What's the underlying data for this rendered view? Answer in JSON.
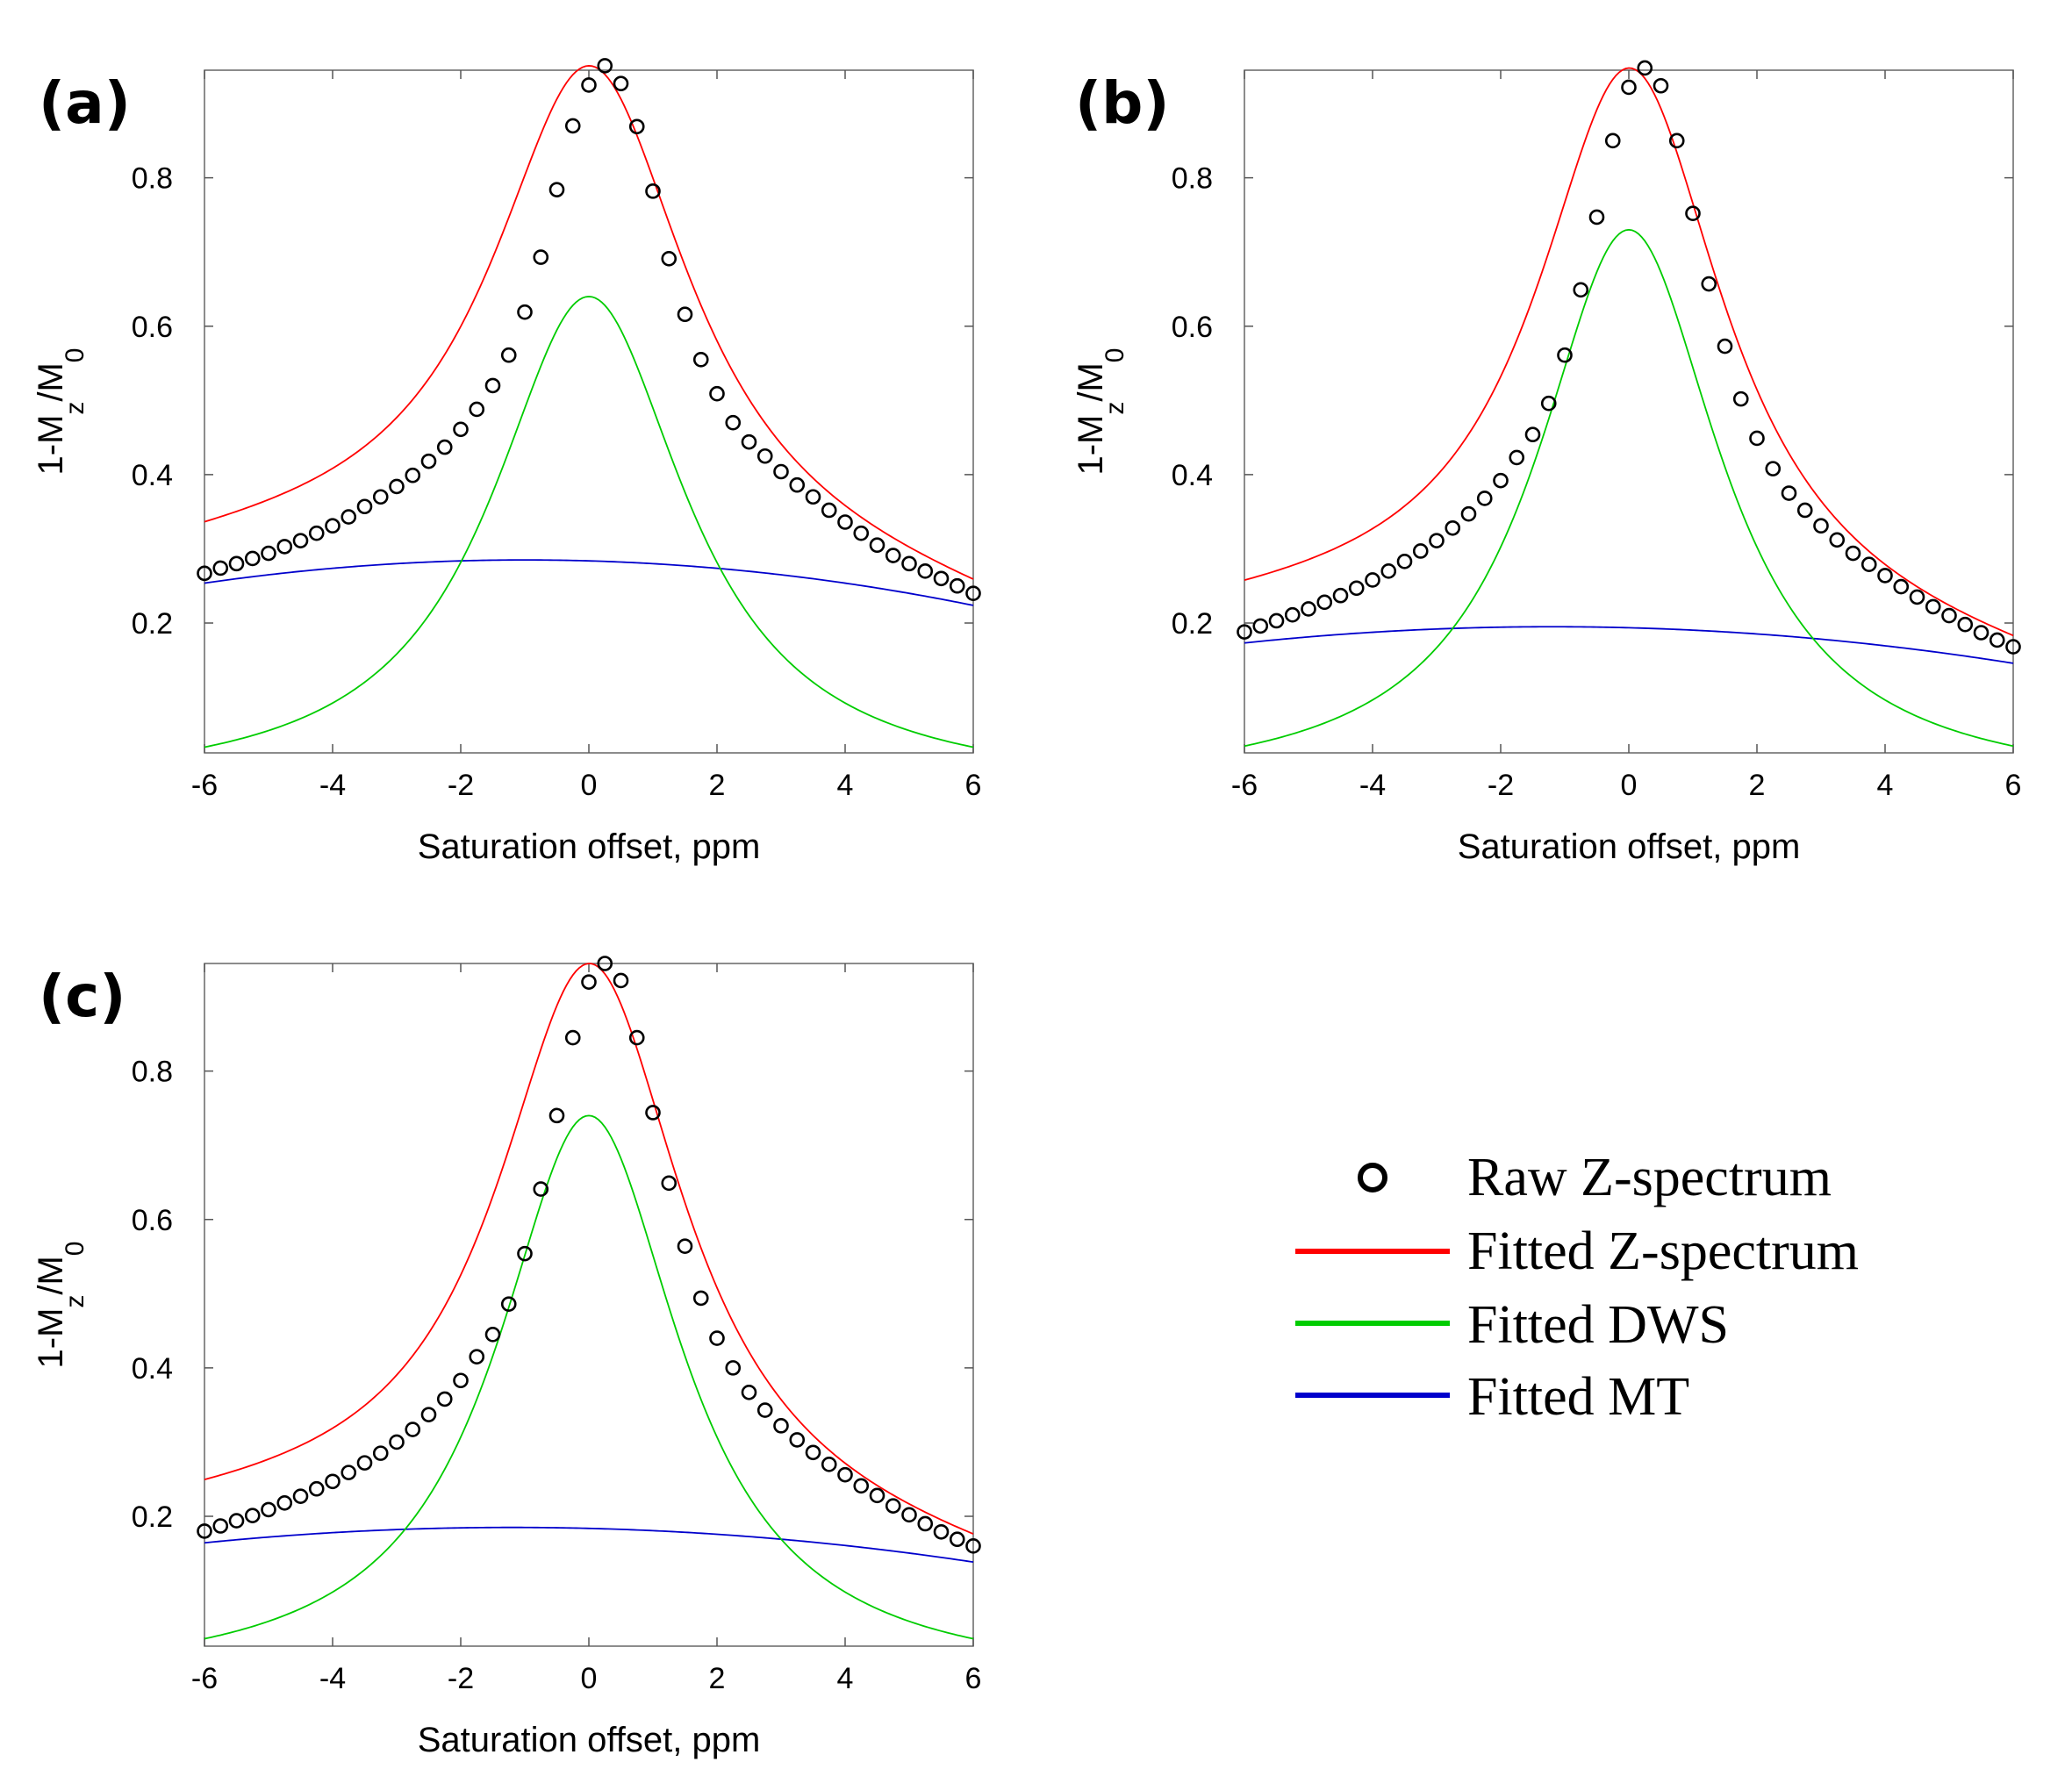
{
  "figure": {
    "colors": {
      "raw": "#000000",
      "fitted_z": "#ff0000",
      "dws": "#00cc00",
      "mt": "#0000cc"
    },
    "legend": {
      "items": [
        {
          "label": "Raw Z-spectrum",
          "marker": "circle",
          "color": "#000000"
        },
        {
          "label": "Fitted Z-spectrum",
          "marker": "line",
          "color": "#ff0000"
        },
        {
          "label": "Fitted DWS",
          "marker": "line",
          "color": "#00cc00"
        },
        {
          "label": "Fitted MT",
          "marker": "line",
          "color": "#0000cc"
        }
      ]
    }
  },
  "chart_data": [
    {
      "panel": "(a)",
      "type": "line",
      "xlabel": "Saturation offset, ppm",
      "ylabel": {
        "prefix": "1-M",
        "sub1": "z",
        "mid": "/M",
        "sub2": "0"
      },
      "xlim": [
        -6,
        6
      ],
      "ylim": [
        0.025,
        0.945
      ],
      "xticks": [
        "-6",
        "-4",
        "-2",
        "0",
        "2",
        "4",
        "6"
      ],
      "yticks": [
        "0.2",
        "0.4",
        "0.6",
        "0.8"
      ],
      "params": {
        "dws_amp": 0.64,
        "dws_w": 1.85,
        "mt_peak": 0.285,
        "mt_c": -1.0,
        "mt_k": 0.00125,
        "z_c": 0.02,
        "z_w": 1.87,
        "z_asym": 0.004
      },
      "raw_x": [
        -6,
        -5.75,
        -5.5,
        -5.25,
        -5,
        -4.75,
        -4.5,
        -4.25,
        -4,
        -3.75,
        -3.5,
        -3.25,
        -3,
        -2.75,
        -2.5,
        -2.25,
        -2,
        -1.75,
        -1.5,
        -1.25,
        -1,
        -0.75,
        -0.5,
        -0.25,
        0,
        0.25,
        0.5,
        0.75,
        1,
        1.25,
        1.5,
        1.75,
        2,
        2.25,
        2.5,
        2.75,
        3,
        3.25,
        3.5,
        3.75,
        4,
        4.25,
        4.5,
        4.75,
        5,
        5.25,
        5.5,
        5.75,
        6
      ],
      "raw_y": [
        0.267,
        0.274,
        0.28,
        0.287,
        0.294,
        0.303,
        0.311,
        0.321,
        0.331,
        0.343,
        0.357,
        0.37,
        0.384,
        0.399,
        0.418,
        0.437,
        0.461,
        0.488,
        0.52,
        0.561,
        0.619,
        0.693,
        0.784,
        0.87,
        0.925,
        0.951,
        0.927,
        0.869,
        0.782,
        0.691,
        0.616,
        0.555,
        0.509,
        0.47,
        0.444,
        0.425,
        0.404,
        0.386,
        0.37,
        0.352,
        0.336,
        0.321,
        0.305,
        0.291,
        0.28,
        0.27,
        0.26,
        0.25,
        0.24
      ]
    },
    {
      "panel": "(b)",
      "type": "line",
      "xlabel": "Saturation offset, ppm",
      "ylabel": {
        "prefix": "1-M",
        "sub1": "z",
        "mid": "/M",
        "sub2": "0"
      },
      "xlim": [
        -6,
        6
      ],
      "ylim": [
        0.025,
        0.945
      ],
      "xticks": [
        "-6",
        "-4",
        "-2",
        "0",
        "2",
        "4",
        "6"
      ],
      "yticks": [
        "0.2",
        "0.4",
        "0.6",
        "0.8"
      ],
      "params": {
        "dws_amp": 0.73,
        "dws_w": 1.75,
        "mt_peak": 0.195,
        "mt_c": -1.2,
        "mt_k": 0.00095,
        "z_c": 0.02,
        "z_w": 1.78,
        "z_asym": 0.004
      },
      "raw_x": [
        -6,
        -5.75,
        -5.5,
        -5.25,
        -5,
        -4.75,
        -4.5,
        -4.25,
        -4,
        -3.75,
        -3.5,
        -3.25,
        -3,
        -2.75,
        -2.5,
        -2.25,
        -2,
        -1.75,
        -1.5,
        -1.25,
        -1,
        -0.75,
        -0.5,
        -0.25,
        0,
        0.25,
        0.5,
        0.75,
        1,
        1.25,
        1.5,
        1.75,
        2,
        2.25,
        2.5,
        2.75,
        3,
        3.25,
        3.5,
        3.75,
        4,
        4.25,
        4.5,
        4.75,
        5,
        5.25,
        5.5,
        5.75,
        6
      ],
      "raw_y": [
        0.188,
        0.196,
        0.203,
        0.211,
        0.219,
        0.228,
        0.237,
        0.247,
        0.258,
        0.27,
        0.283,
        0.297,
        0.311,
        0.328,
        0.347,
        0.368,
        0.392,
        0.423,
        0.454,
        0.496,
        0.561,
        0.649,
        0.747,
        0.85,
        0.922,
        0.948,
        0.924,
        0.85,
        0.752,
        0.657,
        0.573,
        0.502,
        0.449,
        0.408,
        0.375,
        0.352,
        0.331,
        0.312,
        0.294,
        0.279,
        0.264,
        0.249,
        0.235,
        0.222,
        0.21,
        0.198,
        0.187,
        0.177,
        0.168
      ]
    },
    {
      "panel": "(c)",
      "type": "line",
      "xlabel": "Saturation offset, ppm",
      "ylabel": {
        "prefix": "1-M",
        "sub1": "z",
        "mid": "/M",
        "sub2": "0"
      },
      "xlim": [
        -6,
        6
      ],
      "ylim": [
        0.025,
        0.945
      ],
      "xticks": [
        "-6",
        "-4",
        "-2",
        "0",
        "2",
        "4",
        "6"
      ],
      "yticks": [
        "0.2",
        "0.4",
        "0.6",
        "0.8"
      ],
      "params": {
        "dws_amp": 0.74,
        "dws_w": 1.75,
        "mt_peak": 0.185,
        "mt_c": -1.2,
        "mt_k": 0.0009,
        "z_c": 0.02,
        "z_w": 1.78,
        "z_asym": 0.004
      },
      "raw_x": [
        -6,
        -5.75,
        -5.5,
        -5.25,
        -5,
        -4.75,
        -4.5,
        -4.25,
        -4,
        -3.75,
        -3.5,
        -3.25,
        -3,
        -2.75,
        -2.5,
        -2.25,
        -2,
        -1.75,
        -1.5,
        -1.25,
        -1,
        -0.75,
        -0.5,
        -0.25,
        0,
        0.25,
        0.5,
        0.75,
        1,
        1.25,
        1.5,
        1.75,
        2,
        2.25,
        2.5,
        2.75,
        3,
        3.25,
        3.5,
        3.75,
        4,
        4.25,
        4.5,
        4.75,
        5,
        5.25,
        5.5,
        5.75,
        6
      ],
      "raw_y": [
        0.18,
        0.187,
        0.194,
        0.201,
        0.209,
        0.218,
        0.227,
        0.237,
        0.247,
        0.259,
        0.272,
        0.285,
        0.3,
        0.317,
        0.337,
        0.358,
        0.383,
        0.415,
        0.445,
        0.486,
        0.554,
        0.641,
        0.74,
        0.845,
        0.92,
        0.945,
        0.922,
        0.845,
        0.744,
        0.649,
        0.564,
        0.494,
        0.44,
        0.4,
        0.367,
        0.343,
        0.322,
        0.303,
        0.286,
        0.27,
        0.256,
        0.241,
        0.228,
        0.214,
        0.202,
        0.19,
        0.179,
        0.169,
        0.16
      ]
    }
  ]
}
